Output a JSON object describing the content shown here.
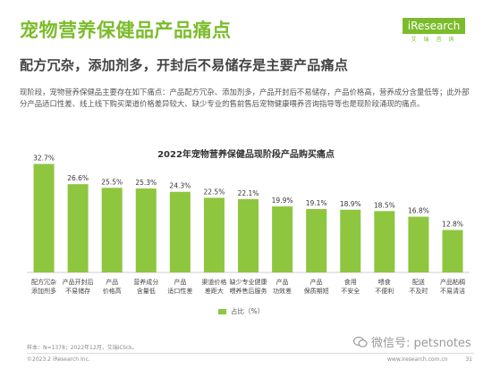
{
  "header": {
    "title": "宠物营养保健品产品痛点",
    "subtitle": "配方冗杂，添加剂多，开封后不易储存是主要产品痛点",
    "logo_text": "iResearch",
    "logo_sub": "艾 瑞 咨 询"
  },
  "description": "现阶段，宠物营养保健品主要存在如下痛点：产品配方冗杂、添加剂多，产品开封后不易储存，产品价格高，营养成分含量低等；此外部分产品适口性差、线上线下购买渠道价格差异较大、缺少专业的售前售后宠物健康喂养咨询指导等也是现阶段涌现的痛点。",
  "chart_data": {
    "type": "bar",
    "title": "2022年宠物营养保健品现阶段产品购买痛点",
    "categories": [
      [
        "配方冗杂",
        "添加剂多"
      ],
      [
        "产品开封后",
        "不易储存"
      ],
      [
        "产品",
        "价格高"
      ],
      [
        "营养成分",
        "含量低"
      ],
      [
        "产品",
        "适口性差"
      ],
      [
        "渠道价格",
        "差距大"
      ],
      [
        "缺少专业健康",
        "喂养售后服务"
      ],
      [
        "产品",
        "功效差"
      ],
      [
        "产品",
        "保质期短"
      ],
      [
        "食用",
        "不安全"
      ],
      [
        "喂食",
        "不便利"
      ],
      [
        "配送",
        "不及时"
      ],
      [
        "产品粘稠",
        "不易清洁"
      ]
    ],
    "values": [
      32.7,
      26.6,
      25.5,
      25.3,
      24.3,
      22.5,
      22.1,
      19.9,
      19.1,
      18.9,
      18.5,
      16.8,
      12.8
    ],
    "value_labels": [
      "32.7%",
      "26.6%",
      "25.5%",
      "25.3%",
      "24.3%",
      "22.5%",
      "22.1%",
      "19.9%",
      "19.1%",
      "18.9%",
      "18.5%",
      "16.8%",
      "12.8%"
    ],
    "series": [
      {
        "name": "占比（%）"
      }
    ],
    "ylim": [
      0,
      35
    ],
    "legend": "bottom-center",
    "color": "#8ec63f"
  },
  "footer": {
    "note": "样本：N=1378；2022年12月，艾瑞iClick。",
    "copyright": "©2023.2 iResearch Inc.",
    "url": "www.iresearch.com.cn",
    "page": "31",
    "watermark": "微信号: petsnotes"
  }
}
